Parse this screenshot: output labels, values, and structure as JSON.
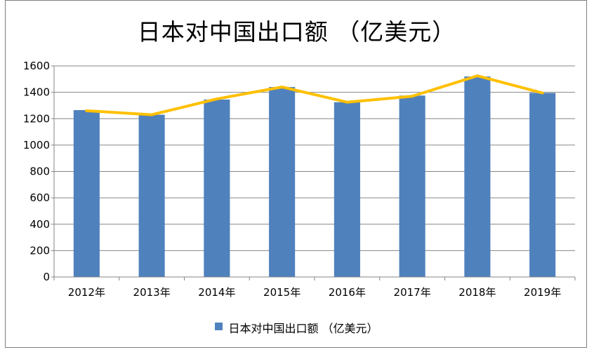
{
  "chart_data": {
    "type": "bar",
    "title": "日本对中国出口额 （亿美元）",
    "categories": [
      "2012年",
      "2013年",
      "2014年",
      "2015年",
      "2016年",
      "2017年",
      "2018年",
      "2019年"
    ],
    "series": [
      {
        "name": "日本对中国出口额 （亿美元）",
        "kind": "bar",
        "color": "#4F81BD",
        "values": [
          1265,
          1230,
          1345,
          1440,
          1325,
          1375,
          1520,
          1395
        ]
      },
      {
        "kind": "line",
        "color": "#FFC000",
        "values": [
          1260,
          1230,
          1350,
          1440,
          1325,
          1370,
          1525,
          1395
        ]
      }
    ],
    "ylim": [
      0,
      1600
    ],
    "yticks": [
      "0",
      "200",
      "400",
      "600",
      "800",
      "1000",
      "1200",
      "1400",
      "1600"
    ],
    "grid": true,
    "gridColor": "#868686",
    "legend": "bottom"
  }
}
